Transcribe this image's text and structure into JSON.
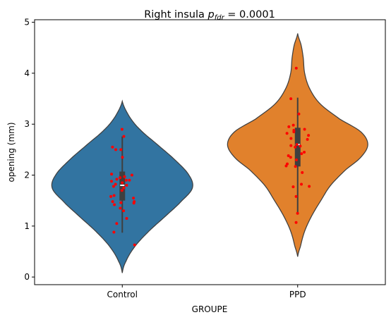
{
  "chart_data": {
    "type": "violin",
    "title": {
      "prefix": "Right insula ",
      "p_main": "p",
      "p_sub": "fdr",
      "suffix": " = 0.0001"
    },
    "xlabel": "GROUPE",
    "ylabel": "opening (mm)",
    "categories": [
      "Control",
      "PPD"
    ],
    "ylim": [
      -0.15,
      5.05
    ],
    "yticks": [
      "0",
      "1",
      "2",
      "3",
      "4",
      "5"
    ],
    "grid": false,
    "legend": "none",
    "series": [
      {
        "category": "Control",
        "color": "#3274a1",
        "kde_range": [
          0.08,
          3.45
        ],
        "kde_profile": [
          [
            0.08,
            0.0
          ],
          [
            0.3,
            0.05
          ],
          [
            0.6,
            0.18
          ],
          [
            0.9,
            0.38
          ],
          [
            1.2,
            0.62
          ],
          [
            1.5,
            0.85
          ],
          [
            1.75,
            1.0
          ],
          [
            2.0,
            0.95
          ],
          [
            2.3,
            0.75
          ],
          [
            2.6,
            0.5
          ],
          [
            2.9,
            0.25
          ],
          [
            3.15,
            0.1
          ],
          [
            3.45,
            0.0
          ]
        ],
        "box": {
          "q1": 1.5,
          "median": 1.8,
          "q3": 2.07,
          "whisker_low": 0.87,
          "whisker_high": 2.76
        },
        "points": [
          2.9,
          2.76,
          2.55,
          2.5,
          2.5,
          2.35,
          2.02,
          2.0,
          1.97,
          1.95,
          1.92,
          1.9,
          1.9,
          1.88,
          1.85,
          1.82,
          1.8,
          1.78,
          1.75,
          1.7,
          1.6,
          1.58,
          1.55,
          1.48,
          1.48,
          1.46,
          1.45,
          1.42,
          1.35,
          1.3,
          1.15,
          1.05,
          0.88,
          0.63
        ]
      },
      {
        "category": "PPD",
        "color": "#e1812c",
        "kde_range": [
          0.4,
          4.78
        ],
        "kde_profile": [
          [
            0.4,
            0.0
          ],
          [
            0.6,
            0.04
          ],
          [
            0.9,
            0.1
          ],
          [
            1.2,
            0.2
          ],
          [
            1.5,
            0.33
          ],
          [
            1.8,
            0.47
          ],
          [
            2.1,
            0.68
          ],
          [
            2.35,
            0.9
          ],
          [
            2.6,
            1.0
          ],
          [
            2.85,
            0.9
          ],
          [
            3.1,
            0.6
          ],
          [
            3.4,
            0.32
          ],
          [
            3.7,
            0.17
          ],
          [
            4.0,
            0.1
          ],
          [
            4.3,
            0.08
          ],
          [
            4.55,
            0.05
          ],
          [
            4.78,
            0.0
          ]
        ],
        "box": {
          "q1": 2.17,
          "median": 2.6,
          "q3": 2.93,
          "whisker_low": 1.24,
          "whisker_high": 3.52
        },
        "points": [
          4.1,
          3.5,
          3.2,
          2.98,
          2.95,
          2.9,
          2.88,
          2.85,
          2.82,
          2.78,
          2.72,
          2.7,
          2.6,
          2.58,
          2.57,
          2.55,
          2.45,
          2.42,
          2.38,
          2.35,
          2.3,
          2.22,
          2.18,
          2.17,
          2.05,
          1.82,
          1.78,
          1.77,
          1.58,
          1.25,
          1.07
        ]
      }
    ]
  }
}
